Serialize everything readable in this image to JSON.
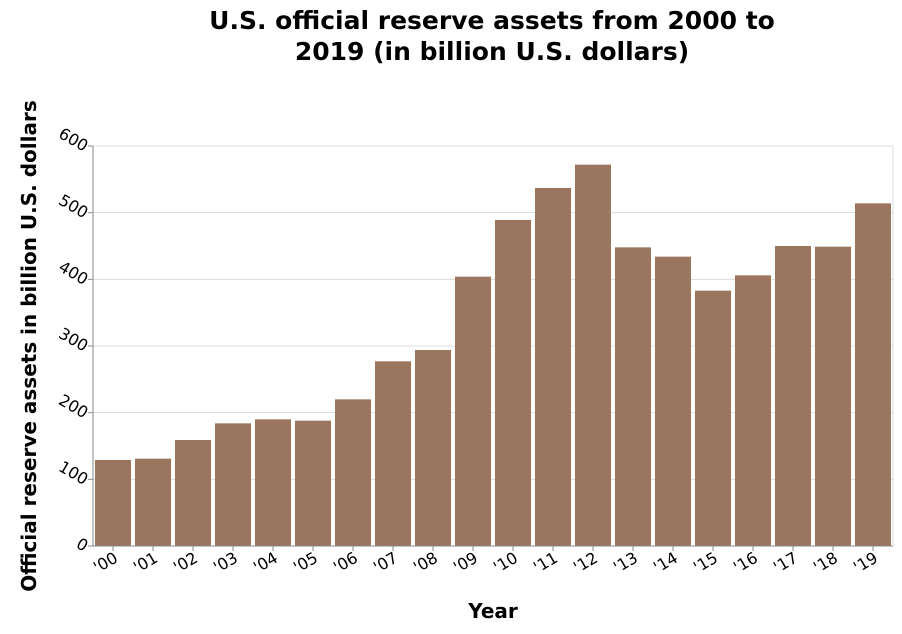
{
  "chart_data": {
    "type": "bar",
    "title": "U.S. official reserve assets from 2000 to 2019 (in billion U.S. dollars)",
    "title_lines": [
      "U.S. official reserve assets from 2000 to",
      "2019 (in billion U.S. dollars)"
    ],
    "xlabel": "Year",
    "ylabel": "Official reserve assets in billion U.S. dollars",
    "categories": [
      "'00",
      "'01",
      "'02",
      "'03",
      "'04",
      "'05",
      "'06",
      "'07",
      "'08",
      "'09",
      "'10",
      "'11",
      "'12",
      "'13",
      "'14",
      "'15",
      "'16",
      "'17",
      "'18",
      "'19"
    ],
    "values": [
      129,
      131,
      159,
      184,
      190,
      188,
      220,
      277,
      294,
      404,
      489,
      537,
      572,
      448,
      434,
      383,
      406,
      450,
      449,
      514
    ],
    "ylim": [
      0,
      600
    ],
    "yticks": [
      0,
      100,
      200,
      300,
      400,
      500,
      600
    ],
    "grid": true,
    "legend": "none",
    "bar_color": "#9b765e"
  }
}
